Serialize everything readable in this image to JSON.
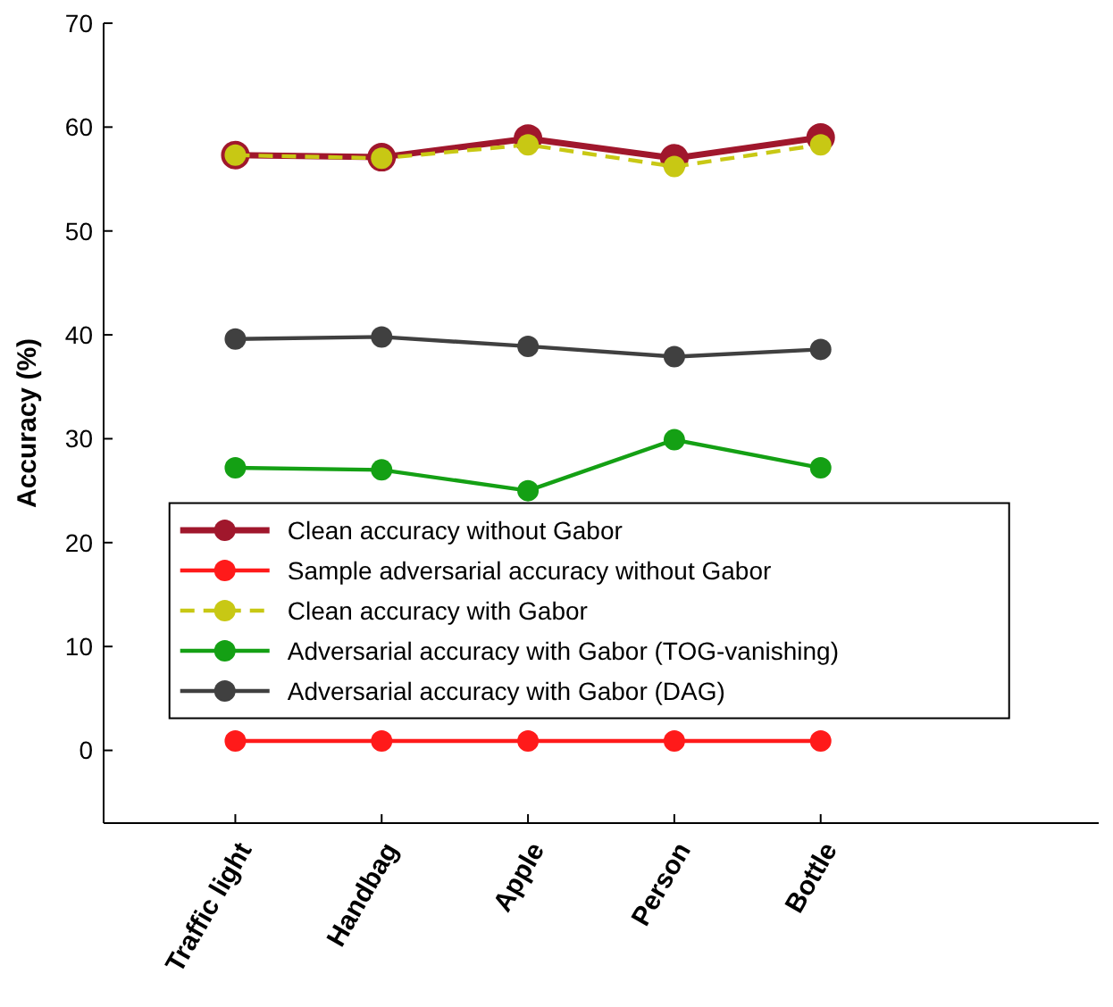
{
  "chart_data": {
    "type": "line",
    "ylabel": "Accuracy (%)",
    "categories": [
      "Traffic light",
      "Handbag",
      "Apple",
      "Person",
      "Bottle"
    ],
    "ylim": [
      -7,
      70
    ],
    "yticks": [
      0,
      10,
      20,
      30,
      40,
      50,
      60,
      70
    ],
    "grid": false,
    "legend": "bottom left",
    "marker": "circle",
    "series": [
      {
        "name": "Clean accuracy without Gabor",
        "color": "#a0172c",
        "values": [
          57.3,
          57.1,
          58.9,
          57.0,
          59.0
        ]
      },
      {
        "name": "Sample adversarial accuracy without Gabor",
        "color": "#ff1a1a",
        "values": [
          0.9,
          0.9,
          0.9,
          0.9,
          0.9
        ]
      },
      {
        "name": "Clean accuracy with Gabor",
        "color": "#c8c814",
        "line_style": "dashed",
        "values": [
          57.3,
          57.0,
          58.3,
          56.2,
          58.3
        ]
      },
      {
        "name": "Adversarial accuracy with Gabor (TOG-vanishing)",
        "color": "#14a014",
        "values": [
          27.2,
          27.0,
          25.0,
          29.9,
          27.2
        ]
      },
      {
        "name": "Adversarial accuracy with Gabor (DAG)",
        "color": "#404040",
        "values": [
          39.6,
          39.8,
          38.9,
          37.9,
          38.6
        ]
      }
    ]
  }
}
